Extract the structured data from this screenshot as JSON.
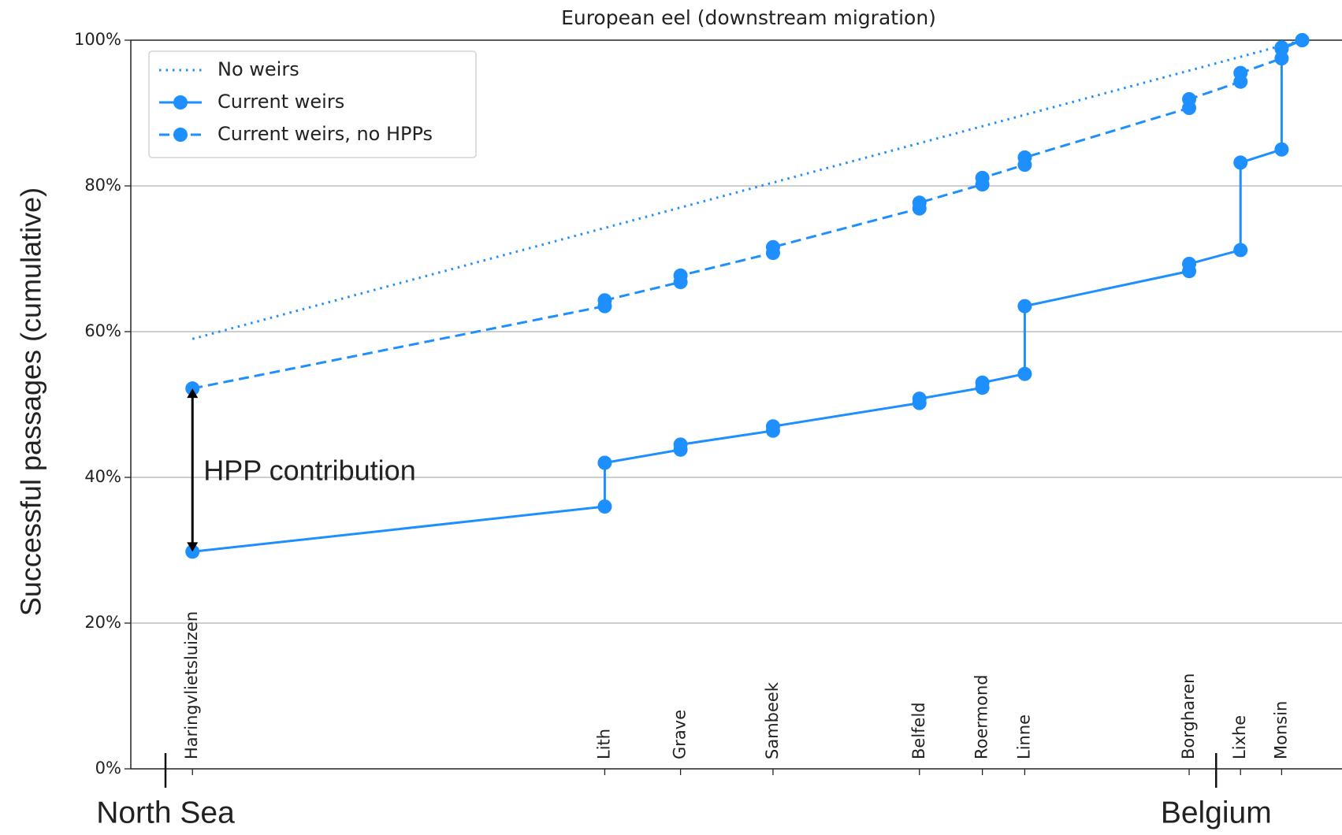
{
  "chart_data": {
    "type": "line",
    "title": "European eel (downstream migration)",
    "ylabel": "Successful passages (cumulative)",
    "ylim": [
      0,
      100
    ],
    "yticks": [
      {
        "value": 0,
        "label": "0%"
      },
      {
        "value": 20,
        "label": "20%"
      },
      {
        "value": 40,
        "label": "40%"
      },
      {
        "value": 60,
        "label": "60%"
      },
      {
        "value": 80,
        "label": "80%"
      },
      {
        "value": 100,
        "label": "100%"
      }
    ],
    "xlim": [
      -27,
      916
    ],
    "xticks": [
      {
        "value": 21,
        "label": "Haringvlietsluizen"
      },
      {
        "value": 342,
        "label": "Lith"
      },
      {
        "value": 401,
        "label": "Grave"
      },
      {
        "value": 473,
        "label": "Sambeek"
      },
      {
        "value": 587,
        "label": "Belfeld"
      },
      {
        "value": 636,
        "label": "Roermond"
      },
      {
        "value": 669,
        "label": "Linne"
      },
      {
        "value": 797,
        "label": "Borgharen"
      },
      {
        "value": 837,
        "label": "Lixhe"
      },
      {
        "value": 869,
        "label": "Monsin"
      }
    ],
    "regions": [
      {
        "value": 0,
        "label": "North Sea"
      },
      {
        "value": 818,
        "label": "Belgium"
      }
    ],
    "grid": true,
    "legend": "upper left",
    "annotation": {
      "text": "HPP contribution",
      "x": 21,
      "from": 29.8,
      "to": 52.2
    },
    "series": [
      {
        "name": "No weirs",
        "color": "#1e8fff",
        "style": "dotted",
        "marker": false,
        "x": [
          21,
          885
        ],
        "values": [
          59,
          100
        ]
      },
      {
        "name": "Current weirs",
        "color": "#1e8fff",
        "style": "solid",
        "marker": true,
        "x": [
          21,
          342,
          342,
          401,
          401,
          473,
          473,
          587,
          587,
          636,
          636,
          669,
          669,
          797,
          797,
          837,
          837,
          869,
          869,
          885
        ],
        "values": [
          29.8,
          36,
          42,
          43.8,
          44.5,
          46.4,
          47,
          50.2,
          50.8,
          52.3,
          53,
          54.2,
          63.5,
          68.3,
          69.3,
          71.2,
          83.2,
          85,
          98.8,
          100
        ]
      },
      {
        "name": "Current weirs, no HPPs",
        "color": "#1e8fff",
        "style": "dashed",
        "marker": true,
        "x": [
          21,
          342,
          342,
          401,
          401,
          473,
          473,
          587,
          587,
          636,
          636,
          669,
          669,
          797,
          797,
          837,
          837,
          869,
          869,
          885
        ],
        "values": [
          52.2,
          63.5,
          64.3,
          66.8,
          67.7,
          70.8,
          71.6,
          76.9,
          77.7,
          80.2,
          81.1,
          82.9,
          83.9,
          90.7,
          91.9,
          94.3,
          95.5,
          97.5,
          99,
          100
        ]
      }
    ]
  }
}
